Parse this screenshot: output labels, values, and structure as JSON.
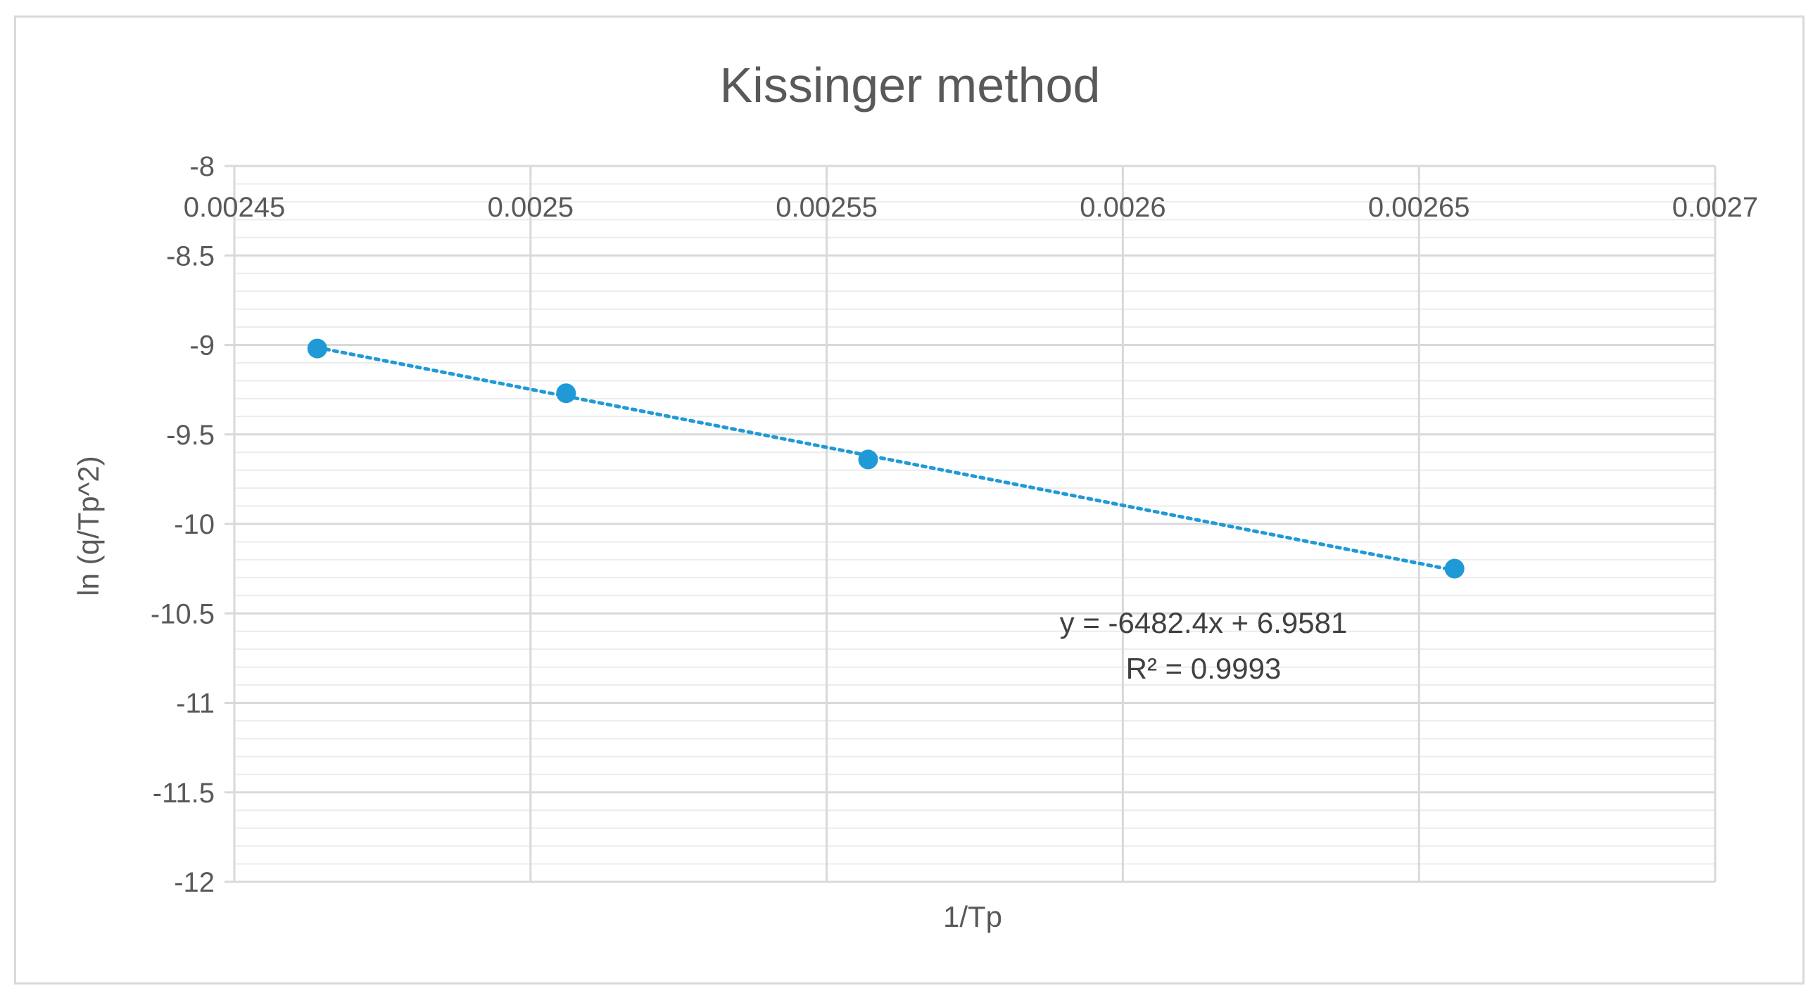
{
  "chart_data": {
    "type": "scatter",
    "title": "Kissinger method",
    "xlabel": "1/Tp",
    "ylabel": "ln (q/Tp^2)",
    "xlim": [
      0.00245,
      0.0027
    ],
    "ylim": [
      -12,
      -8
    ],
    "x_ticks": [
      "0.00245",
      "0.0025",
      "0.00255",
      "0.0026",
      "0.00265",
      "0.0027"
    ],
    "y_ticks": [
      "-8",
      "-8.5",
      "-9",
      "-9.5",
      "-10",
      "-10.5",
      "-11",
      "-11.5",
      "-12"
    ],
    "grid": true,
    "minor_grid": true,
    "x_axis_position": "top",
    "points": [
      {
        "x": 0.002464,
        "y": -9.02
      },
      {
        "x": 0.002506,
        "y": -9.27
      },
      {
        "x": 0.002557,
        "y": -9.64
      },
      {
        "x": 0.002656,
        "y": -10.25
      }
    ],
    "trendline": {
      "type": "linear",
      "style": "dotted",
      "slope": -6482.4,
      "intercept": 6.9581,
      "equation": "y = -6482.4x + 6.9581",
      "r_squared": "R² = 0.9993"
    },
    "colors": {
      "marker": "#1f9ad6",
      "trendline": "#1f9ad6",
      "grid": "#d9d9d9",
      "minor_grid": "#ececec",
      "text": "#595959"
    }
  }
}
